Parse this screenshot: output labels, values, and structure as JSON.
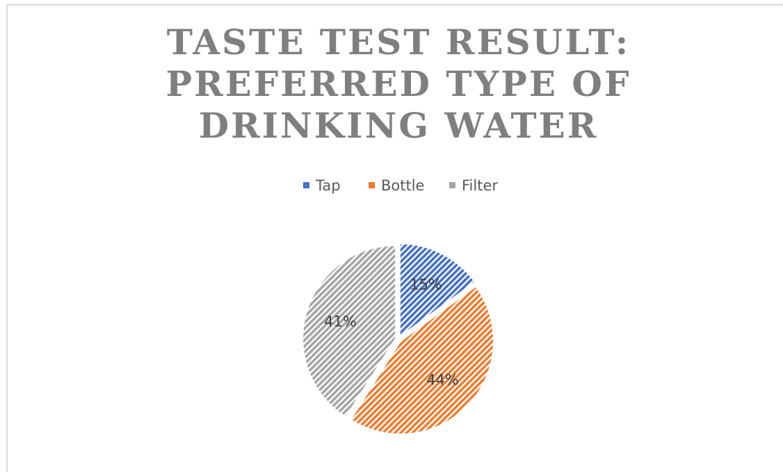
{
  "chart_data": {
    "type": "pie",
    "title": [
      "TASTE TEST RESULT:",
      "PREFERRED TYPE OF",
      "DRINKING WATER"
    ],
    "categories": [
      "Tap",
      "Bottle",
      "Filter"
    ],
    "values": [
      15,
      44,
      41
    ],
    "value_labels": [
      "15%",
      "44%",
      "41%"
    ],
    "colors": [
      "#4472c4",
      "#ed7d31",
      "#a5a5a5"
    ],
    "legend": "top"
  }
}
